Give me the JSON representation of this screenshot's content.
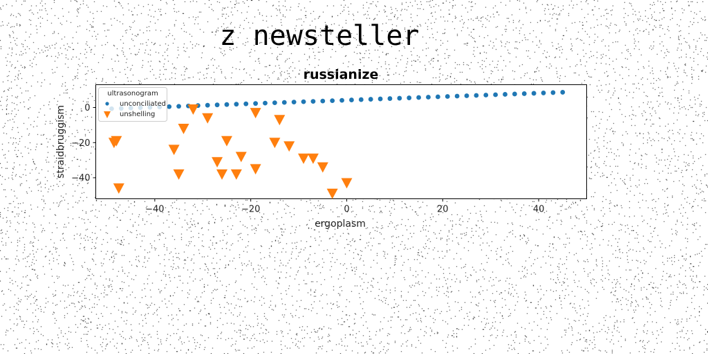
{
  "page_title": "z newsteller",
  "chart_data": {
    "type": "scatter",
    "title": "russianize",
    "xlabel": "ergoplasm",
    "ylabel": "straidbruggism",
    "xlim": [
      -52.3,
      50
    ],
    "ylim": [
      -52,
      13
    ],
    "xticks": [
      -40,
      -20,
      0,
      20,
      40
    ],
    "yticks": [
      0,
      -20,
      -40
    ],
    "grid": false,
    "legend": {
      "title": "ultrasonogram",
      "placement": "top-left"
    },
    "series": [
      {
        "name": "unconciliated",
        "marker": "circle",
        "color": "#1f77b4",
        "x": [
          -49,
          -47,
          -45,
          -43,
          -41,
          -39,
          -37,
          -35,
          -33,
          -31,
          -29,
          -27,
          -25,
          -23,
          -21,
          -19,
          -17,
          -15,
          -13,
          -11,
          -9,
          -7,
          -5,
          -3,
          -1,
          1,
          3,
          5,
          7,
          9,
          11,
          13,
          15,
          17,
          19,
          21,
          23,
          25,
          27,
          29,
          31,
          33,
          35,
          37,
          39,
          41,
          43,
          45
        ],
        "y": [
          -0.7,
          -0.5,
          -0.3,
          -0.1,
          0.1,
          0.3,
          0.5,
          0.7,
          0.9,
          1.1,
          1.3,
          1.5,
          1.7,
          1.9,
          2.1,
          2.3,
          2.5,
          2.7,
          2.9,
          3.1,
          3.3,
          3.5,
          3.7,
          3.9,
          4.1,
          4.3,
          4.5,
          4.7,
          4.9,
          5.1,
          5.3,
          5.5,
          5.7,
          5.9,
          6.1,
          6.3,
          6.5,
          6.7,
          6.9,
          7.1,
          7.3,
          7.5,
          7.7,
          7.9,
          8.1,
          8.3,
          8.5,
          8.7
        ]
      },
      {
        "name": "unshelling",
        "marker": "triangle-down",
        "color": "#ff7f0e",
        "x": [
          -48.5,
          -48,
          -47.5,
          -36,
          -35,
          -34,
          -32,
          -29,
          -27,
          -26,
          -25,
          -23,
          -22,
          -19,
          -19,
          -15,
          -14,
          -12,
          -9,
          -7,
          -5,
          -3,
          0
        ],
        "y": [
          -20,
          -19,
          -46,
          -24,
          -38,
          -12,
          -1,
          -6,
          -31,
          -38,
          -19,
          -38,
          -28,
          -35,
          -3,
          -20,
          -7,
          -22,
          -29,
          -29,
          -34,
          -49,
          -43
        ]
      }
    ]
  }
}
